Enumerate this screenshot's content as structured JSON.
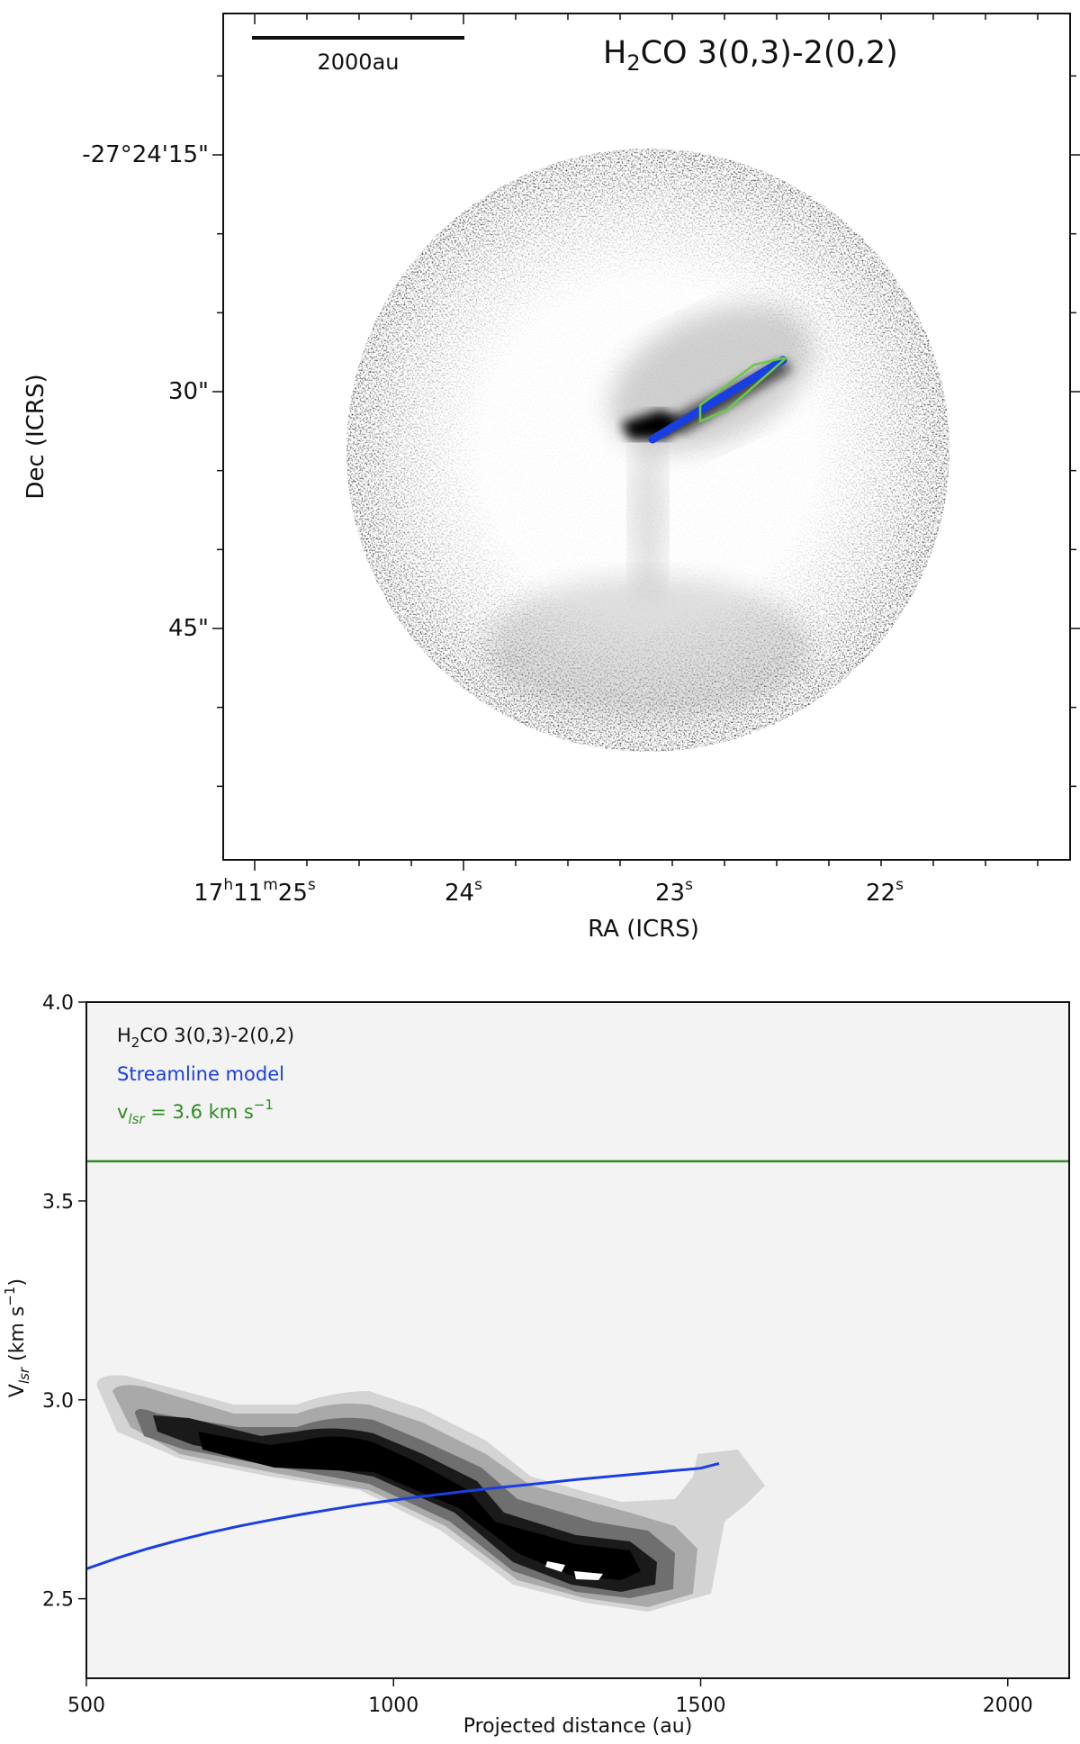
{
  "chart_data": [
    {
      "type": "heatmap",
      "title": "H2CO 3(0,3)-2(0,2)",
      "title_parts": {
        "main": "H",
        "sub": "2",
        "rest": "CO 3(0,3)-2(0,2)"
      },
      "scalebar_label": "2000au",
      "xlabel": "RA (ICRS)",
      "ylabel": "Dec (ICRS)",
      "x_ticks": [
        {
          "label_main": "17",
          "sup1": "h",
          "mid": "11",
          "sup2": "m",
          "end": "25",
          "sup3": "s",
          "value": 25
        },
        {
          "label_main": "24",
          "sup3": "s",
          "value": 24
        },
        {
          "label_main": "23",
          "sup3": "s",
          "value": 23
        },
        {
          "label_main": "22",
          "sup3": "s",
          "value": 22
        }
      ],
      "y_ticks": [
        {
          "label": "-27°24'15\"",
          "value": 15
        },
        {
          "label": "30\"",
          "value": 30
        },
        {
          "label": "45\"",
          "value": 45
        }
      ],
      "colormap": "grayscale",
      "overlays": [
        {
          "name": "streamline model path",
          "color": "#1a3fe0"
        },
        {
          "name": "extraction polygon",
          "color": "#66cc44"
        }
      ]
    },
    {
      "type": "line",
      "xlabel": "Projected distance (au)",
      "ylabel": "V",
      "ylabel_sub": "lsr",
      "ylabel_unit": " (km s",
      "ylabel_sup": "−1",
      "ylabel_close": ")",
      "xlim": [
        500,
        2100
      ],
      "ylim": [
        2.3,
        4.0
      ],
      "x_ticks": [
        500,
        1000,
        1500,
        2000
      ],
      "y_ticks": [
        2.5,
        3.0,
        3.5,
        4.0
      ],
      "x_tick_labels": [
        "500",
        "1000",
        "1500",
        "2000"
      ],
      "y_tick_labels": [
        "2.5",
        "3.0",
        "3.5",
        "4.0"
      ],
      "grid": false,
      "background": "#f3f3f3",
      "legend": {
        "placement": "top-left",
        "entries": [
          {
            "text_main": "H",
            "text_sub": "2",
            "text_rest": "CO 3(0,3)-2(0,2)",
            "color": "#111111"
          },
          {
            "text_main": "Streamline model",
            "color": "#1a3fe0"
          },
          {
            "text_main": "v",
            "text_sub": "lsr",
            "text_rest": " = 3.6 km s",
            "text_sup": "−1",
            "color": "#2e8b22"
          }
        ]
      },
      "series": [
        {
          "name": "Streamline model",
          "color": "#1a3fe0",
          "x": [
            500,
            550,
            600,
            650,
            700,
            750,
            800,
            850,
            900,
            950,
            1000,
            1050,
            1100,
            1150,
            1200,
            1250,
            1300,
            1350,
            1400,
            1450,
            1500,
            1530
          ],
          "y": [
            2.575,
            2.602,
            2.626,
            2.647,
            2.666,
            2.683,
            2.698,
            2.712,
            2.725,
            2.737,
            2.748,
            2.758,
            2.767,
            2.776,
            2.784,
            2.792,
            2.8,
            2.807,
            2.814,
            2.821,
            2.828,
            2.84
          ]
        }
      ],
      "hline": {
        "y": 3.6,
        "color": "#2e8b22"
      },
      "contour_levels": [
        "#d4d4d4",
        "#a9a9a9",
        "#6f6f6f",
        "#1a1a1a",
        "#000000"
      ]
    }
  ]
}
